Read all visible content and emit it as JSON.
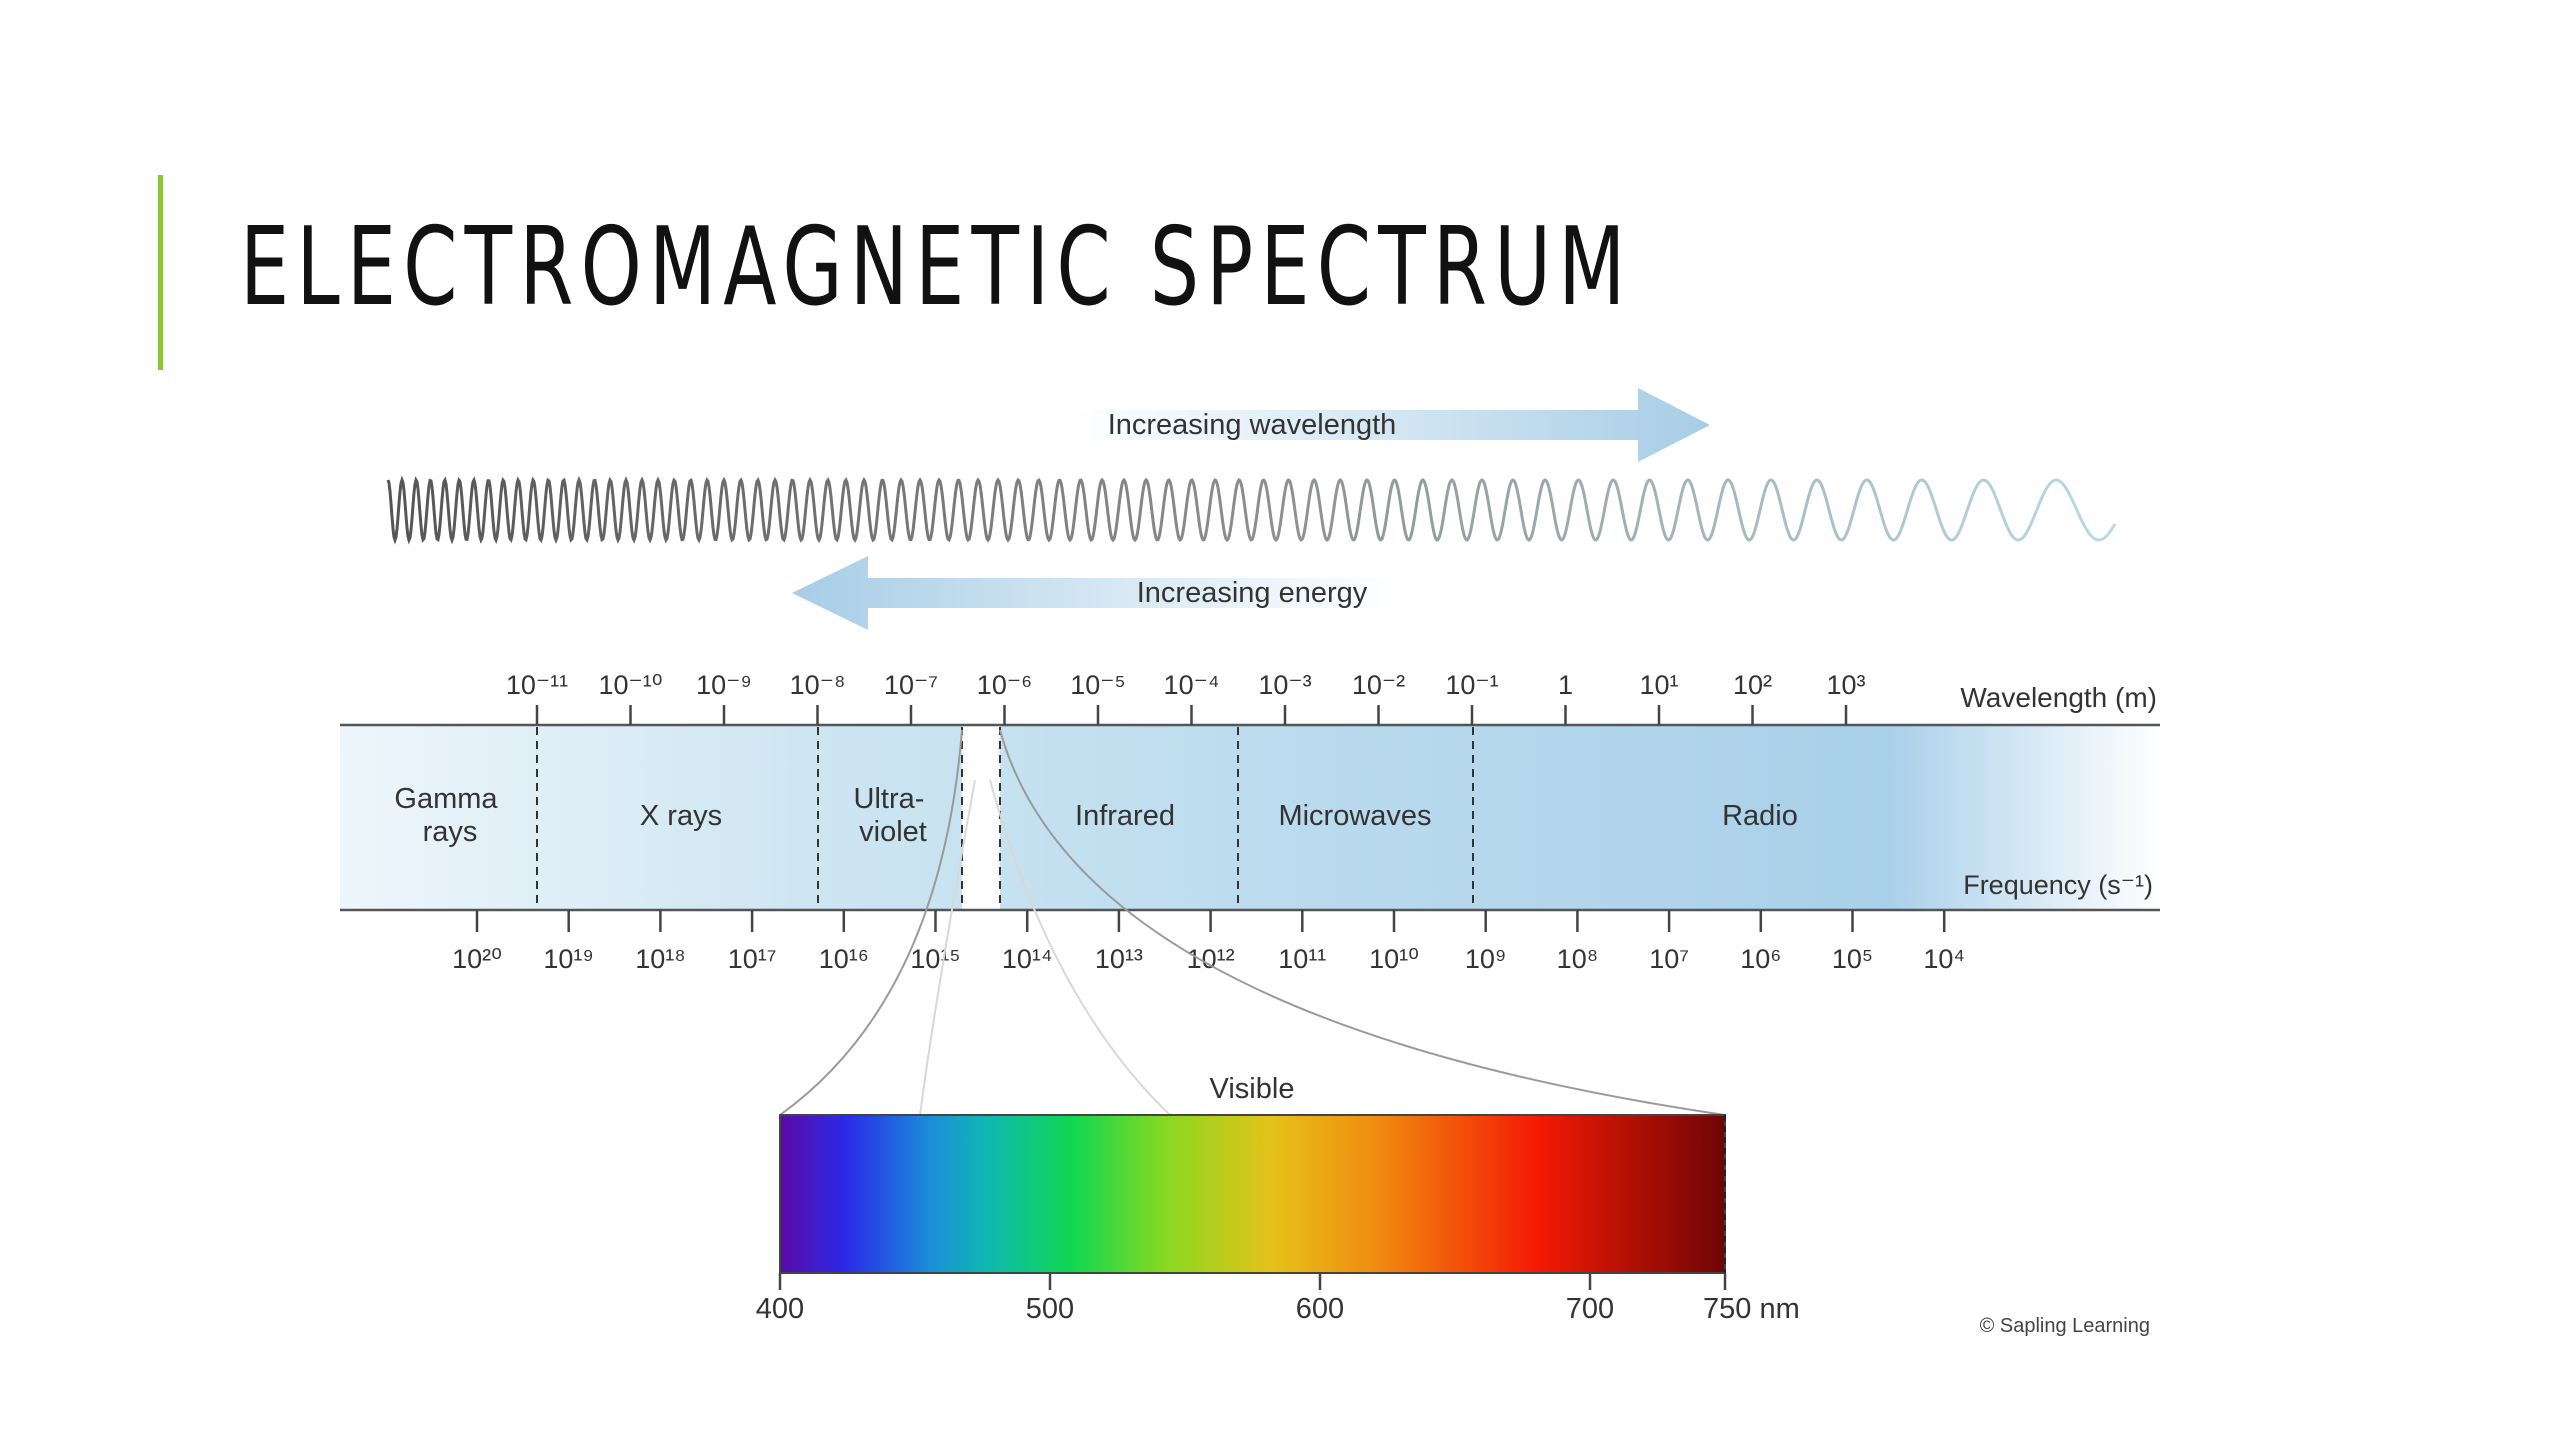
{
  "slide": {
    "title": "ELECTROMAGNETIC SPECTRUM",
    "accent_color": "#8cc63f"
  },
  "arrows": {
    "wavelength": "Increasing wavelength",
    "energy": "Increasing energy"
  },
  "spectrum": {
    "wavelength_label": "Wavelength (m)",
    "frequency_label": "Frequency (s⁻¹)",
    "wavelength_ticks": [
      "10⁻¹¹",
      "10⁻¹⁰",
      "10⁻⁹",
      "10⁻⁸",
      "10⁻⁷",
      "10⁻⁶",
      "10⁻⁵",
      "10⁻⁴",
      "10⁻³",
      "10⁻²",
      "10⁻¹",
      "1",
      "10¹",
      "10²",
      "10³"
    ],
    "frequency_ticks": [
      "10²⁰",
      "10¹⁹",
      "10¹⁸",
      "10¹⁷",
      "10¹⁶",
      "10¹⁵",
      "10¹⁴",
      "10¹³",
      "10¹²",
      "10¹¹",
      "10¹⁰",
      "10⁹",
      "10⁸",
      "10⁷",
      "10⁶",
      "10⁵",
      "10⁴"
    ],
    "regions": {
      "gamma": [
        "Gamma",
        "rays"
      ],
      "xray": "X rays",
      "uv": [
        "Ultra-",
        "violet"
      ],
      "infrared": "Infrared",
      "microwaves": "Microwaves",
      "radio": "Radio"
    }
  },
  "visible": {
    "label": "Visible",
    "ticks": [
      "400",
      "500",
      "600",
      "700",
      "750 nm"
    ]
  },
  "credit": "© Sapling Learning"
}
